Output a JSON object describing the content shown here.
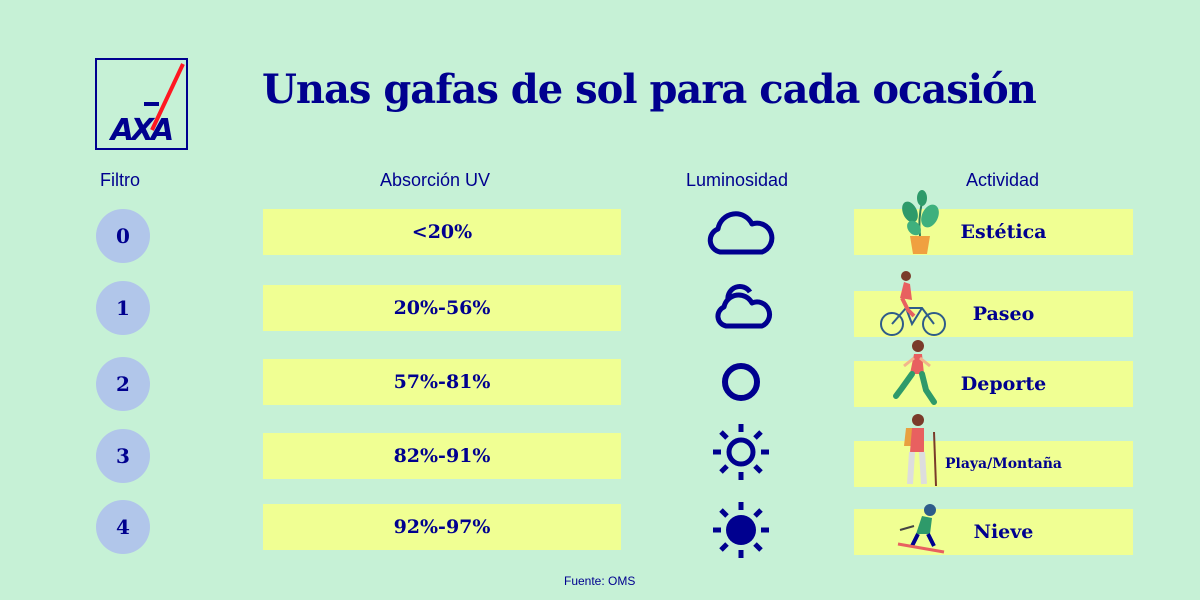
{
  "logo": {
    "text": "AXA"
  },
  "title": "Unas gafas de sol para cada ocasión",
  "headers": {
    "filtro": "Filtro",
    "absorcion": "Absorción UV",
    "luminosidad": "Luminosidad",
    "actividad": "Actividad"
  },
  "rows": [
    {
      "filtro": "0",
      "absorcion": "<20%",
      "luminosidad_icon": "cloud-icon",
      "actividad": "Estética",
      "actividad_icon": "plant-icon"
    },
    {
      "filtro": "1",
      "absorcion": "20%-56%",
      "luminosidad_icon": "partly-cloudy-icon",
      "actividad": "Paseo",
      "actividad_icon": "cyclist-icon"
    },
    {
      "filtro": "2",
      "absorcion": "57%-81%",
      "luminosidad_icon": "sun-outline-icon",
      "actividad": "Deporte",
      "actividad_icon": "runner-icon"
    },
    {
      "filtro": "3",
      "absorcion": "82%-91%",
      "luminosidad_icon": "sun-rays-icon",
      "actividad": "Playa/Montaña",
      "actividad_icon": "hiker-icon"
    },
    {
      "filtro": "4",
      "absorcion": "92%-97%",
      "luminosidad_icon": "sun-filled-icon",
      "actividad": "Nieve",
      "actividad_icon": "skier-icon"
    }
  ],
  "source": "Fuente: OMS",
  "colors": {
    "background": "#c6f1d6",
    "navy": "#00008f",
    "yellow": "#f0ff93",
    "badge": "#b1c6ea",
    "red": "#ff1721"
  }
}
